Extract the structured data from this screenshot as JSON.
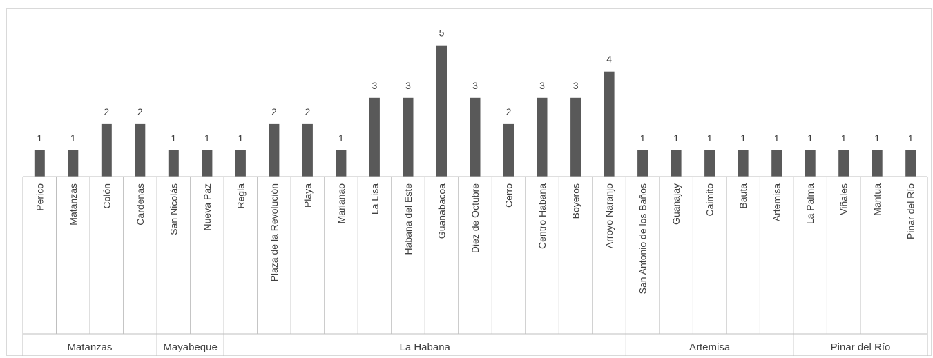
{
  "chart_data": {
    "type": "bar",
    "title": "",
    "xlabel": "",
    "ylabel": "",
    "ylim": [
      0,
      6.2
    ],
    "grid": false,
    "legend": "none",
    "bar_color": "#595959",
    "axis_color": "#bfbfbf",
    "label_color": "#404040",
    "data_labels": true,
    "categories": [
      "Perico",
      "Matanzas",
      "Colón",
      "Cardenas",
      "San Nicolás",
      "Nueva Paz",
      "Regla",
      "Plaza de la Revolución",
      "Playa",
      "Marianao",
      "La Lisa",
      "Habana del Este",
      "Guanabacoa",
      "Diez de Octubre",
      "Cerro",
      "Centro Habana",
      "Boyeros",
      "Arroyo Naranjo",
      "San Antonio de los Baños",
      "Guanajay",
      "Caimito",
      "Bauta",
      "Artemisa",
      "La Palma",
      "Viñales",
      "Mantua",
      "Pinar del Río"
    ],
    "values": [
      1,
      1,
      2,
      2,
      1,
      1,
      1,
      2,
      2,
      1,
      3,
      3,
      5,
      3,
      2,
      3,
      3,
      4,
      1,
      1,
      1,
      1,
      1,
      1,
      1,
      1,
      1
    ],
    "groups": [
      {
        "name": "Matanzas",
        "count": 4
      },
      {
        "name": "Mayabeque",
        "count": 2
      },
      {
        "name": "La Habana",
        "count": 12
      },
      {
        "name": "Artemisa",
        "count": 5
      },
      {
        "name": "Pinar del Río",
        "count": 4
      }
    ]
  }
}
